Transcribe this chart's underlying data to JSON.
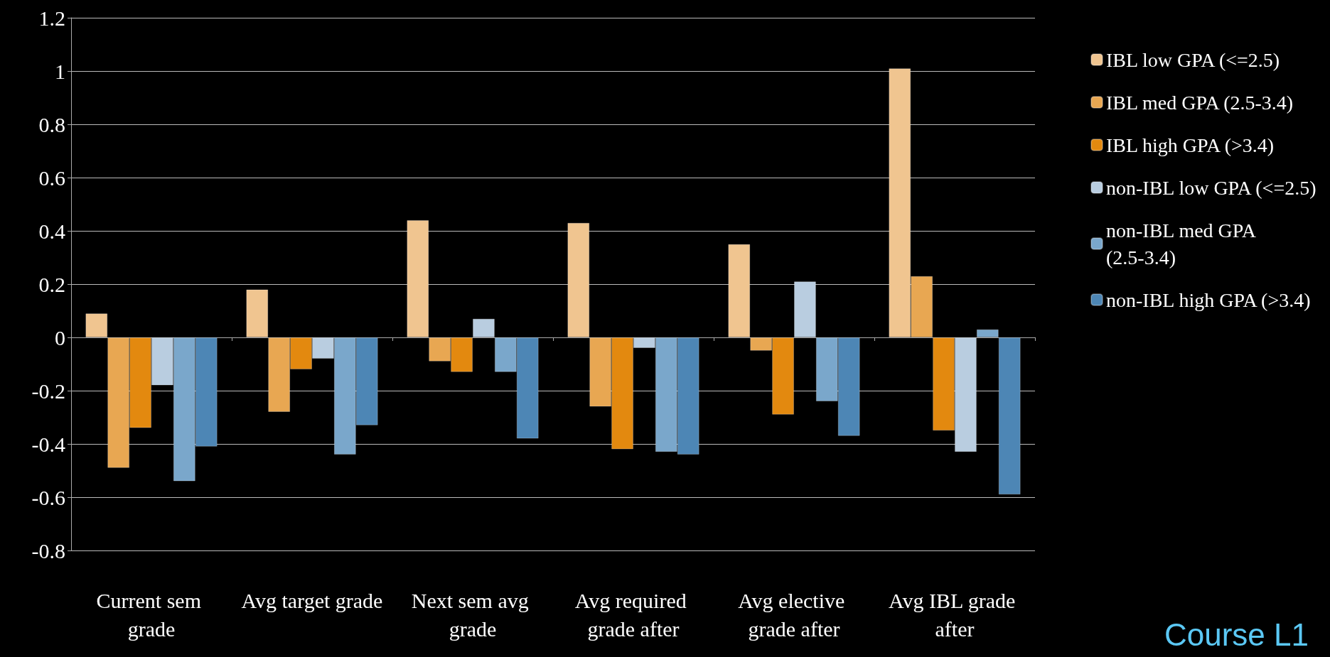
{
  "chart_data": {
    "type": "bar",
    "categories": [
      "Current sem grade",
      "Avg target grade",
      "Next sem avg grade",
      "Avg required grade after",
      "Avg elective grade after",
      "Avg IBL grade after"
    ],
    "series": [
      {
        "name": "IBL low GPA (<=2.5)",
        "color": "#f0c590",
        "values": [
          0.09,
          0.18,
          0.44,
          0.43,
          0.35,
          1.01
        ]
      },
      {
        "name": "IBL med GPA (2.5-3.4)",
        "color": "#e8a752",
        "values": [
          -0.49,
          -0.28,
          -0.09,
          -0.26,
          -0.05,
          0.23
        ]
      },
      {
        "name": "IBL high GPA (>3.4)",
        "color": "#e3890f",
        "values": [
          -0.34,
          -0.12,
          -0.13,
          -0.42,
          -0.29,
          -0.35
        ]
      },
      {
        "name": "non-IBL low GPA (<=2.5)",
        "color": "#b9cde0",
        "values": [
          -0.18,
          -0.08,
          0.07,
          -0.04,
          0.21,
          -0.43
        ]
      },
      {
        "name": "non-IBL med GPA (2.5-3.4)",
        "color": "#7aa7cb",
        "values": [
          -0.54,
          -0.44,
          -0.13,
          -0.43,
          -0.24,
          0.03
        ]
      },
      {
        "name": "non-IBL high GPA (>3.4)",
        "color": "#4d86b5",
        "values": [
          -0.41,
          -0.33,
          -0.38,
          -0.44,
          -0.37,
          -0.59
        ]
      }
    ],
    "ylim": [
      -0.8,
      1.2
    ],
    "yticks": [
      -0.8,
      -0.6,
      -0.4,
      -0.2,
      0,
      0.2,
      0.4,
      0.6,
      0.8,
      1,
      1.2
    ],
    "grid": "y",
    "legend": "right",
    "annotations": [
      "Course L1"
    ]
  }
}
